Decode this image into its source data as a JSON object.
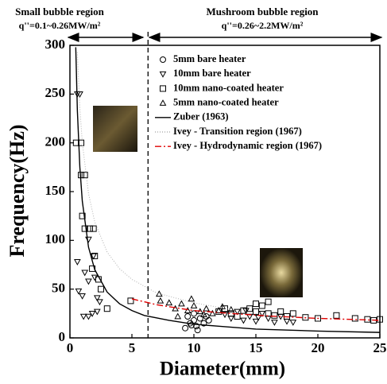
{
  "chart_data": {
    "type": "scatter",
    "annotations": {
      "left_region": "Small bubble region",
      "left_flux": "q''=0.1~0.26MW/m²",
      "right_region": "Mushroom bubble region",
      "right_flux": "q''=0.26~2.2MW/m²"
    },
    "x_label": "Diameter(mm)",
    "y_label": "Frequency(Hz)",
    "xlim": [
      0,
      25
    ],
    "ylim": [
      0,
      300
    ],
    "xticks": [
      0,
      5,
      10,
      15,
      20,
      25
    ],
    "yticks": [
      0,
      50,
      100,
      150,
      200,
      250,
      300
    ],
    "divider": 6.3,
    "series": [
      {
        "name": "5mm bare heater",
        "marker": "circle",
        "color": "#000000",
        "x": [
          9.5,
          9.7,
          10,
          10.2,
          10.5,
          10,
          9.3,
          10.8,
          11,
          10.3,
          9.8,
          11.2
        ],
        "values": [
          22,
          15,
          18,
          12,
          20,
          25,
          10,
          15,
          22,
          8,
          13,
          18
        ]
      },
      {
        "name": "10mm bare heater",
        "marker": "triangle-down",
        "color": "#000000",
        "x": [
          0.6,
          0.8,
          0.6,
          0.7,
          1,
          1.2,
          1.5,
          1.9,
          2,
          2.2,
          2.4,
          1.1,
          1.5,
          1.8,
          2.2,
          1.5,
          12.5,
          13,
          13.5,
          14,
          14.5,
          15,
          15.5,
          16,
          16.5,
          17,
          17.5,
          18,
          15.2,
          14.2
        ],
        "values": [
          250,
          250,
          78,
          48,
          43,
          67,
          58,
          84,
          62,
          41,
          37,
          22,
          22,
          25,
          27,
          101,
          24,
          20,
          27,
          18,
          22,
          17,
          25,
          20,
          16,
          22,
          17,
          16,
          21,
          28
        ]
      },
      {
        "name": "10mm nano-coated heater",
        "marker": "square",
        "color": "#000000",
        "x": [
          0.5,
          0.9,
          0.9,
          1.2,
          1,
          1.2,
          1.6,
          1.9,
          2,
          1.8,
          2.5,
          2.3,
          3,
          4.9,
          12,
          12.5,
          13,
          13.5,
          14,
          14.5,
          15,
          15.5,
          16,
          16.5,
          17,
          17.5,
          18,
          19,
          20,
          21.5,
          23,
          24,
          24.5,
          25,
          15,
          16
        ],
        "values": [
          200,
          200,
          167,
          167,
          125,
          112,
          112,
          112,
          84,
          71,
          50,
          60,
          30,
          38,
          27,
          30,
          25,
          22,
          28,
          30,
          27,
          33,
          25,
          23,
          27,
          22,
          25,
          21,
          20,
          23,
          20,
          19,
          18,
          19,
          35,
          37
        ]
      },
      {
        "name": "5mm nano-coated heater",
        "marker": "triangle-up",
        "color": "#000000",
        "x": [
          7.2,
          7.3,
          8,
          8.5,
          9,
          9.5,
          10,
          10.5,
          11,
          11.5,
          12,
          8.7,
          9.8,
          12.3,
          13,
          10.8
        ],
        "values": [
          45,
          38,
          36,
          30,
          35,
          28,
          33,
          27,
          30,
          25,
          28,
          22,
          40,
          32,
          29,
          24
        ]
      },
      {
        "name": "Zuber (1963)",
        "marker": "line",
        "style": "solid",
        "color": "#000000",
        "x": [
          0.47,
          0.6,
          0.8,
          1,
          1.5,
          2,
          3,
          4,
          5,
          6,
          8,
          10,
          12,
          15,
          20,
          25
        ],
        "values": [
          298,
          233,
          175,
          140,
          93,
          70,
          47,
          35,
          28,
          23,
          18,
          14,
          12,
          9,
          7,
          5.6
        ]
      },
      {
        "name": "Ivey - Transition region (1967)",
        "marker": "line",
        "style": "dotted",
        "color": "#b0b0b0",
        "x": [
          0.6,
          0.8,
          1,
          1.5,
          2,
          3,
          4,
          5,
          7,
          10,
          13
        ],
        "values": [
          293,
          236,
          200,
          148,
          119,
          88,
          71,
          60,
          46,
          36,
          29
        ]
      },
      {
        "name": "Ivey - Hydrodynamic region (1967)",
        "marker": "line",
        "style": "dashdot",
        "color": "#e00000",
        "x": [
          5,
          7,
          10,
          13,
          16,
          20,
          25
        ],
        "values": [
          40,
          34,
          28,
          25,
          22.5,
          20,
          18
        ]
      }
    ]
  }
}
